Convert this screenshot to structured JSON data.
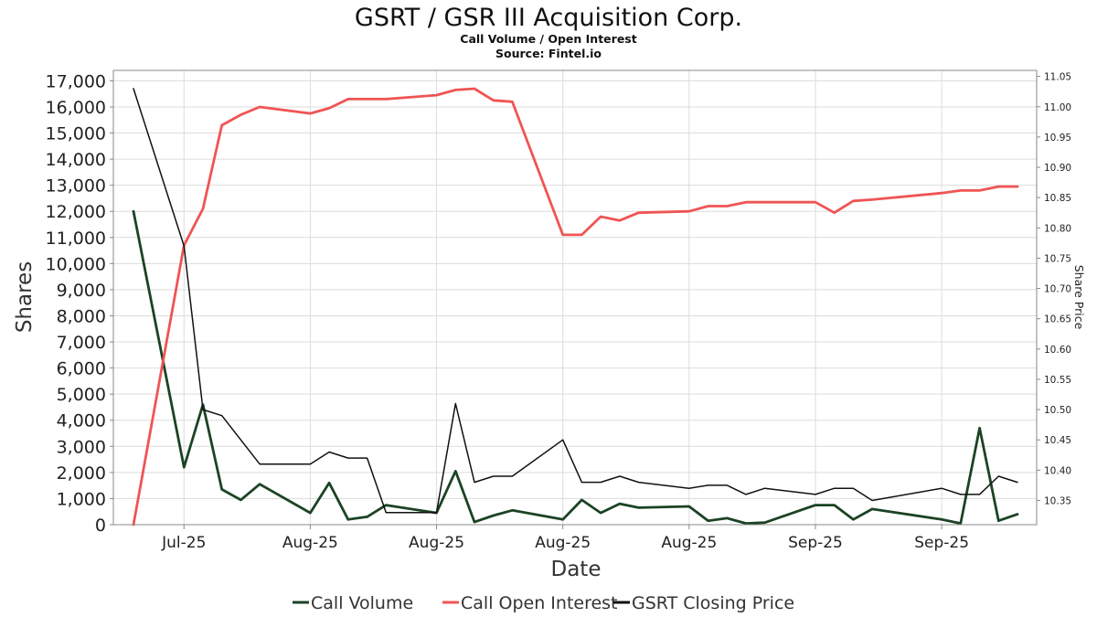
{
  "chart_data": {
    "type": "line",
    "title": "GSRT / GSR III Acquisition Corp.",
    "subtitle": "Call Volume / Open Interest",
    "source": "Source: Fintel.io",
    "xlabel": "Date",
    "ylabel": "Shares",
    "y2label": "Share Price",
    "ylim": [
      0,
      17400
    ],
    "y2lim": [
      10.31,
      11.06
    ],
    "yticks": [
      "0",
      "1,000",
      "2,000",
      "3,000",
      "4,000",
      "5,000",
      "6,000",
      "7,000",
      "8,000",
      "9,000",
      "10,000",
      "11,000",
      "12,000",
      "13,000",
      "14,000",
      "15,000",
      "16,000",
      "17,000"
    ],
    "ytick_values": [
      0,
      1000,
      2000,
      3000,
      4000,
      5000,
      6000,
      7000,
      8000,
      9000,
      10000,
      11000,
      12000,
      13000,
      14000,
      15000,
      16000,
      17000
    ],
    "y2ticks": [
      "10.35",
      "10.40",
      "10.45",
      "10.50",
      "10.55",
      "10.60",
      "10.65",
      "10.70",
      "10.75",
      "10.80",
      "10.85",
      "10.90",
      "10.95",
      "11.00",
      "11.05"
    ],
    "y2tick_values": [
      10.35,
      10.4,
      10.45,
      10.5,
      10.55,
      10.6,
      10.65,
      10.7,
      10.75,
      10.8,
      10.85,
      10.9,
      10.95,
      11.0,
      11.05
    ],
    "xlim": [
      0,
      70
    ],
    "xticks": [
      {
        "label": "Jul-25",
        "x": 4
      },
      {
        "label": "Aug-25",
        "x": 14
      },
      {
        "label": "Aug-25",
        "x": 24
      },
      {
        "label": "Aug-25",
        "x": 34
      },
      {
        "label": "Aug-25",
        "x": 44
      },
      {
        "label": "Sep-25",
        "x": 54
      },
      {
        "label": "Sep-25",
        "x": 64
      }
    ],
    "legend_position": "bottom",
    "grid": true,
    "series": [
      {
        "name": "Call Volume",
        "color": "#1b4325",
        "axis": "left",
        "x": [
          0,
          4,
          5.5,
          7,
          8.5,
          10,
          14,
          15.5,
          17,
          18.5,
          20,
          24,
          25.5,
          27,
          28.5,
          30,
          34,
          35.5,
          37,
          38.5,
          40,
          44,
          45.5,
          47,
          48.5,
          50,
          54,
          55.5,
          57,
          58.5,
          64,
          65.5,
          67,
          68.5,
          70
        ],
        "y": [
          12000,
          2200,
          4600,
          1350,
          950,
          1550,
          450,
          1600,
          200,
          300,
          750,
          450,
          2050,
          100,
          350,
          550,
          200,
          950,
          450,
          800,
          650,
          700,
          150,
          250,
          50,
          80,
          750,
          750,
          200,
          600,
          200,
          50,
          3700,
          150,
          400
        ]
      },
      {
        "name": "Call Open Interest",
        "color": "#f05454",
        "axis": "left",
        "x": [
          0,
          4,
          5.5,
          7,
          8.5,
          10,
          14,
          15.5,
          17,
          18.5,
          20,
          24,
          25.5,
          27,
          28.5,
          30,
          34,
          35.5,
          37,
          38.5,
          40,
          44,
          45.5,
          47,
          48.5,
          50,
          54,
          55.5,
          57,
          58.5,
          64,
          65.5,
          67,
          68.5,
          70
        ],
        "y": [
          0,
          10700,
          12100,
          15300,
          15700,
          16000,
          15750,
          15950,
          16300,
          16300,
          16300,
          16450,
          16650,
          16700,
          16250,
          16200,
          11100,
          11100,
          11800,
          11650,
          11950,
          12000,
          12200,
          12200,
          12350,
          12350,
          12350,
          11950,
          12400,
          12450,
          12700,
          12800,
          12800,
          12950,
          12950
        ]
      },
      {
        "name": "GSRT Closing Price",
        "color": "#111111",
        "axis": "right",
        "x": [
          0,
          4,
          5.5,
          7,
          8.5,
          10,
          14,
          15.5,
          17,
          18.5,
          20,
          24,
          25.5,
          27,
          28.5,
          30,
          34,
          35.5,
          37,
          38.5,
          40,
          44,
          45.5,
          47,
          48.5,
          50,
          54,
          55.5,
          57,
          58.5,
          64,
          65.5,
          67,
          68.5,
          70
        ],
        "y": [
          11.03,
          10.77,
          10.5,
          10.49,
          10.45,
          10.41,
          10.41,
          10.43,
          10.42,
          10.42,
          10.33,
          10.33,
          10.51,
          10.38,
          10.39,
          10.39,
          10.45,
          10.38,
          10.38,
          10.39,
          10.38,
          10.37,
          10.375,
          10.375,
          10.36,
          10.37,
          10.36,
          10.37,
          10.37,
          10.35,
          10.37,
          10.36,
          10.36,
          10.39,
          10.38
        ]
      }
    ]
  }
}
